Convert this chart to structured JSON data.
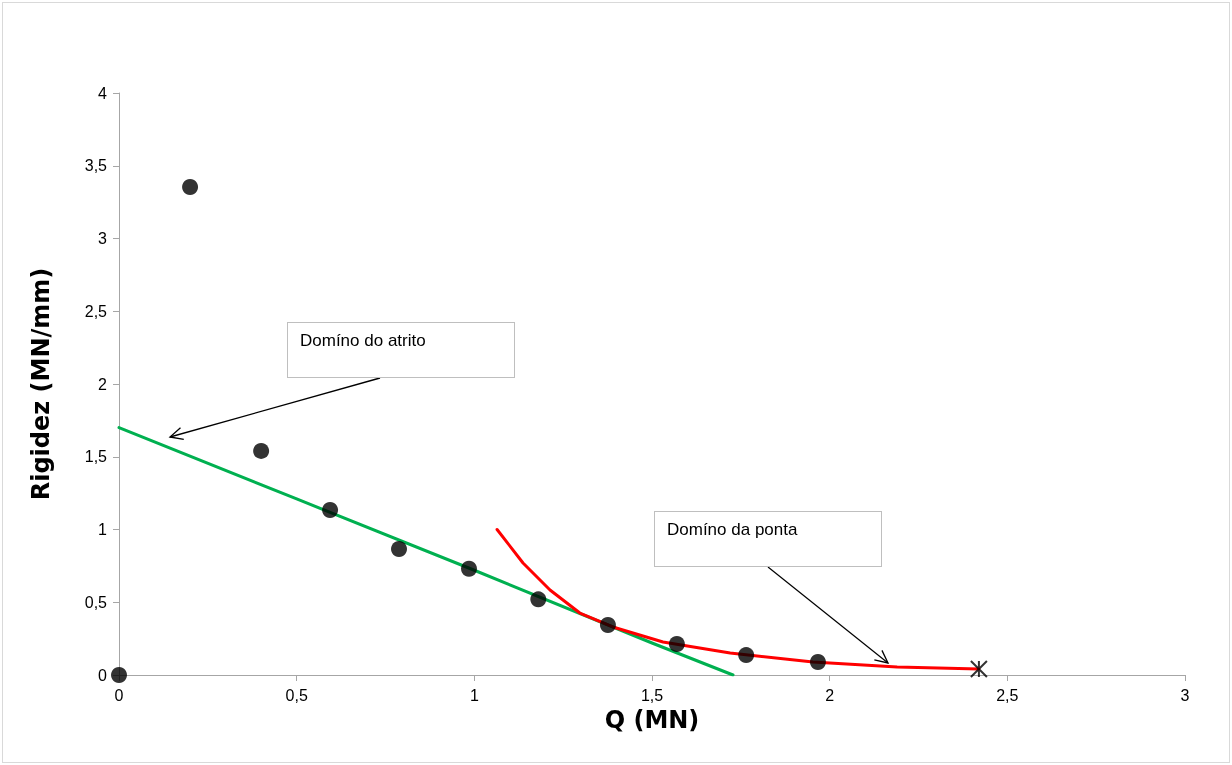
{
  "chart_data": {
    "type": "scatter",
    "xlabel": "Q (MN)",
    "ylabel": "Rigidez (MN/mm)",
    "xlim": [
      0,
      3
    ],
    "xticks": [
      0,
      {
        "value": 0.5,
        "label": "0,5"
      },
      1,
      {
        "value": 1.5,
        "label": "1,5"
      },
      2,
      {
        "value": 2.5,
        "label": "2,5"
      },
      3
    ],
    "ylim": [
      0,
      4
    ],
    "yticks": [
      0,
      {
        "value": 0.5,
        "label": "0,5"
      },
      1,
      {
        "value": 1.5,
        "label": "1,5"
      },
      2,
      {
        "value": 2.5,
        "label": "2,5"
      },
      3,
      {
        "value": 3.5,
        "label": "3,5"
      },
      4
    ],
    "grid": false,
    "series": [
      {
        "type": "line",
        "color": "#00b050",
        "marker": "none",
        "x": [
          0,
          0.5,
          1.0,
          1.5,
          1.728
        ],
        "values": [
          1.7,
          1.21,
          0.72,
          0.22,
          0
        ]
      },
      {
        "type": "line",
        "color": "#ff0000",
        "marker": "none",
        "x": [
          1.064,
          1.137,
          1.213,
          1.297,
          1.39,
          1.531,
          1.72,
          1.953,
          2.19,
          2.42
        ],
        "values": [
          1.0,
          0.77,
          0.584,
          0.426,
          0.33,
          0.227,
          0.151,
          0.089,
          0.055,
          0.041
        ]
      },
      {
        "color": "#000000",
        "marker": "circle",
        "x": [
          0,
          0.2,
          0.4,
          0.594,
          0.788,
          0.985,
          1.18,
          1.376,
          1.57,
          1.765,
          1.967
        ],
        "values": [
          0,
          3.354,
          1.54,
          1.134,
          0.866,
          0.73,
          0.52,
          0.344,
          0.213,
          0.137,
          0.089
        ]
      },
      {
        "color": "#000000",
        "marker": "cross",
        "x": [
          2.42
        ],
        "values": [
          0.041
        ]
      }
    ],
    "annotations": [
      "Domíno do atrito",
      "Domíno da ponta"
    ]
  }
}
